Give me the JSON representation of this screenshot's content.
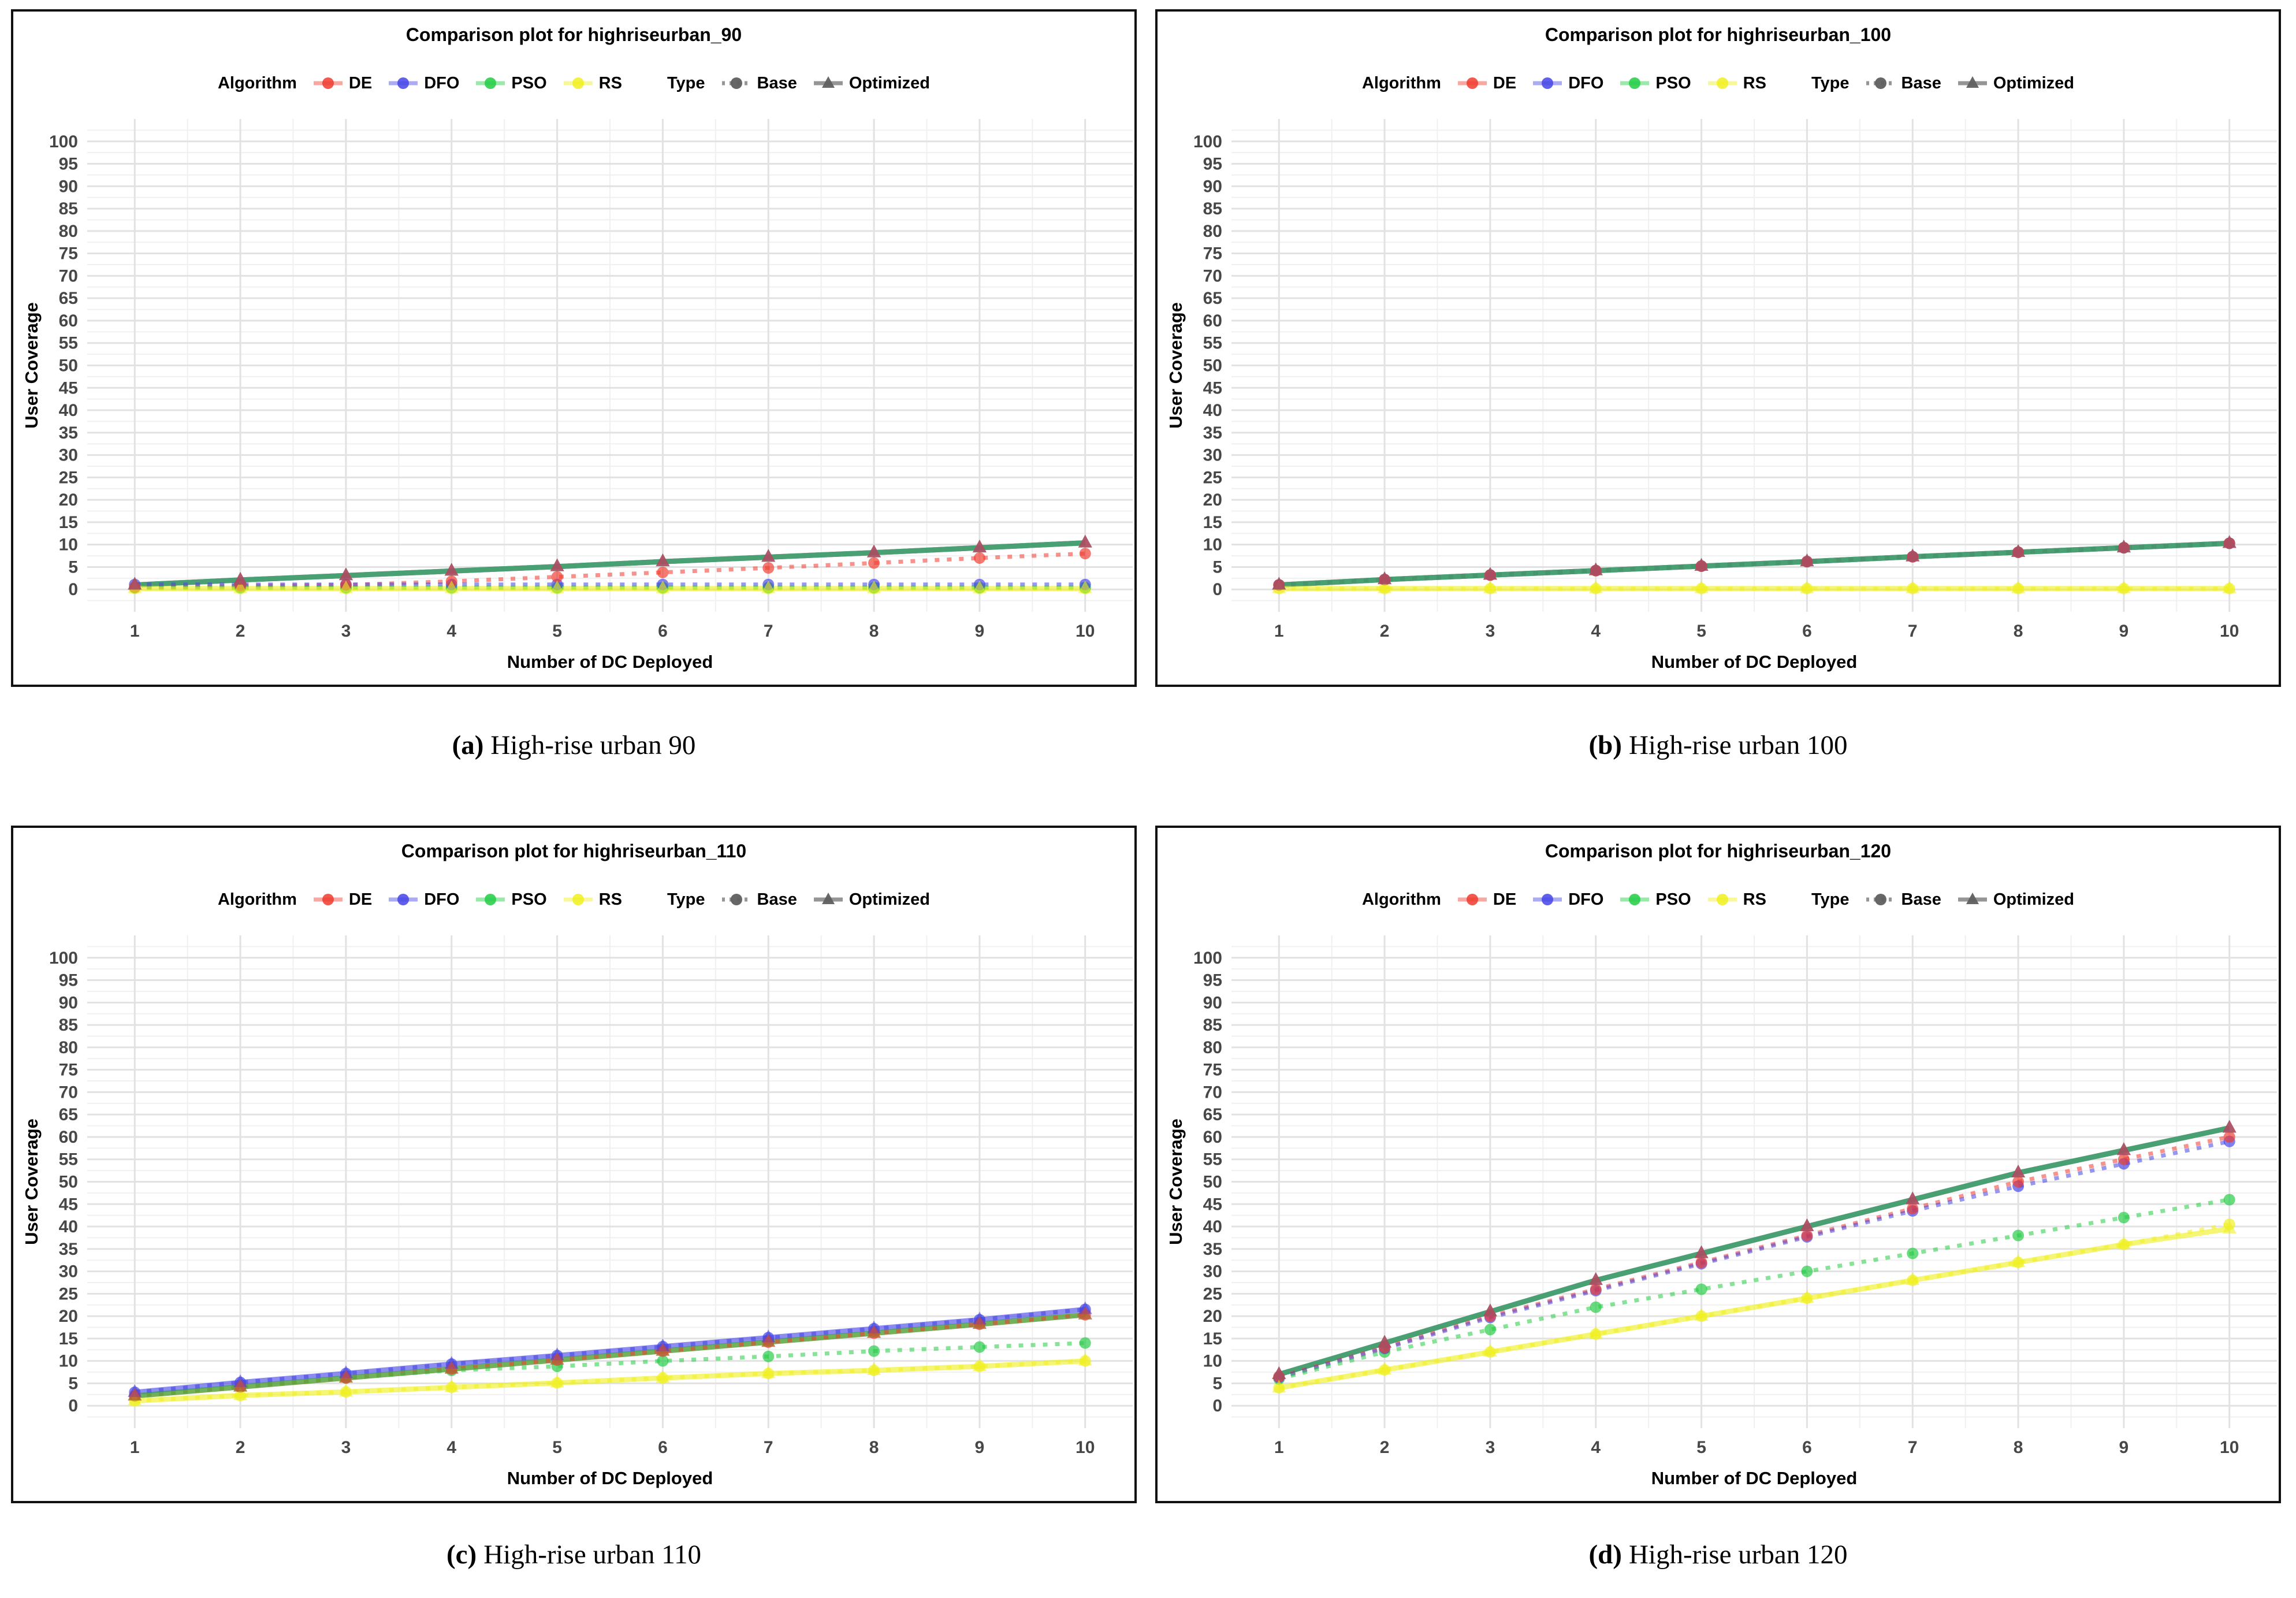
{
  "palette": {
    "DE": "#f03b2e",
    "DFO": "#4444e6",
    "PSO": "#22cc44",
    "RS": "#f0f020",
    "type_gray": "#8a8a8a",
    "type_dark_gray": "#5f5f5f",
    "grid_major": "#e2e2e2",
    "grid_minor": "#f0f0f0",
    "tick_label": "#474747",
    "axis_title": "#000000",
    "border": "#111111"
  },
  "legend": {
    "algorithm_label": "Algorithm",
    "algorithms": [
      {
        "label": "DE",
        "color_key": "DE"
      },
      {
        "label": "DFO",
        "color_key": "DFO"
      },
      {
        "label": "PSO",
        "color_key": "PSO"
      },
      {
        "label": "RS",
        "color_key": "RS"
      }
    ],
    "type_label": "Type",
    "types": [
      {
        "label": "Base",
        "line": "dotted",
        "marker": "circle"
      },
      {
        "label": "Optimized",
        "line": "solid",
        "marker": "triangle"
      }
    ]
  },
  "panels": [
    {
      "id": "a",
      "title": "Comparison plot for highriseurban_90",
      "caption": {
        "label": "(a)",
        "text": "High-rise urban 90"
      }
    },
    {
      "id": "b",
      "title": "Comparison plot for highriseurban_100",
      "caption": {
        "label": "(b)",
        "text": "High-rise urban 100"
      }
    },
    {
      "id": "c",
      "title": "Comparison plot for highriseurban_110",
      "caption": {
        "label": "(c)",
        "text": "High-rise urban 110"
      }
    },
    {
      "id": "d",
      "title": "Comparison plot for highriseurban_120",
      "caption": {
        "label": "(d)",
        "text": "High-rise urban 120"
      }
    }
  ],
  "chart_data": [
    {
      "panel": "a",
      "type": "line",
      "title": "Comparison plot for highriseurban_90",
      "xlabel": "Number of DC Deployed",
      "ylabel": "User Coverage",
      "x": [
        1,
        2,
        3,
        4,
        5,
        6,
        7,
        8,
        9,
        10
      ],
      "xlim": [
        0.55,
        10.45
      ],
      "ylim": [
        -5,
        105
      ],
      "x_tick_labels": [
        "1",
        "2",
        "3",
        "4",
        "5",
        "6",
        "7",
        "8",
        "9",
        "10"
      ],
      "y_tick_labels": [
        "0",
        "5",
        "10",
        "15",
        "20",
        "25",
        "30",
        "35",
        "40",
        "45",
        "50",
        "55",
        "60",
        "65",
        "70",
        "75",
        "80",
        "85",
        "90",
        "95",
        "100"
      ],
      "y_major_step": 5,
      "grid": true,
      "legend_position": "top",
      "series": [
        {
          "name": "DE Base",
          "algorithm": "DE",
          "type": "Base",
          "values": [
            0.5,
            0.8,
            1,
            1.8,
            2.8,
            3.8,
            4.8,
            5.9,
            7,
            8
          ]
        },
        {
          "name": "DE Optimized",
          "algorithm": "DE",
          "type": "Optimized",
          "values": [
            1,
            2.1,
            3.1,
            4.1,
            5.1,
            6.2,
            7.2,
            8.2,
            9.3,
            10.4
          ]
        },
        {
          "name": "DFO Base",
          "algorithm": "DFO",
          "type": "Base",
          "values": [
            1.1,
            1.1,
            1.1,
            1.1,
            1.1,
            1.1,
            1.1,
            1.1,
            1.1,
            1.1
          ]
        },
        {
          "name": "DFO Optimized",
          "algorithm": "DFO",
          "type": "Optimized",
          "values": [
            1,
            2.1,
            3.1,
            4.1,
            5.1,
            6.2,
            7.2,
            8.2,
            9.3,
            10.4
          ]
        },
        {
          "name": "PSO Base",
          "algorithm": "PSO",
          "type": "Base",
          "values": [
            0.4,
            0.4,
            0.4,
            0.4,
            0.4,
            0.4,
            0.4,
            0.4,
            0.4,
            0.4
          ]
        },
        {
          "name": "PSO Optimized",
          "algorithm": "PSO",
          "type": "Optimized",
          "values": [
            1,
            2.1,
            3.1,
            4.1,
            5.1,
            6.2,
            7.2,
            8.2,
            9.3,
            10.4
          ]
        },
        {
          "name": "RS Base",
          "algorithm": "RS",
          "type": "Base",
          "values": [
            0.2,
            0.2,
            0.2,
            0.2,
            0.2,
            0.2,
            0.2,
            0.2,
            0.2,
            0.2
          ]
        },
        {
          "name": "RS Optimized",
          "algorithm": "RS",
          "type": "Optimized",
          "values": [
            0.2,
            0.2,
            0.2,
            0.2,
            0.2,
            0.2,
            0.2,
            0.2,
            0.2,
            0.2
          ]
        }
      ]
    },
    {
      "panel": "b",
      "type": "line",
      "title": "Comparison plot for highriseurban_100",
      "xlabel": "Number of DC Deployed",
      "ylabel": "User Coverage",
      "x": [
        1,
        2,
        3,
        4,
        5,
        6,
        7,
        8,
        9,
        10
      ],
      "xlim": [
        0.55,
        10.45
      ],
      "ylim": [
        -5,
        105
      ],
      "x_tick_labels": [
        "1",
        "2",
        "3",
        "4",
        "5",
        "6",
        "7",
        "8",
        "9",
        "10"
      ],
      "y_tick_labels": [
        "0",
        "5",
        "10",
        "15",
        "20",
        "25",
        "30",
        "35",
        "40",
        "45",
        "50",
        "55",
        "60",
        "65",
        "70",
        "75",
        "80",
        "85",
        "90",
        "95",
        "100"
      ],
      "y_major_step": 5,
      "grid": true,
      "legend_position": "top",
      "series": [
        {
          "name": "DE Base",
          "algorithm": "DE",
          "type": "Base",
          "values": [
            1,
            2.2,
            3.2,
            4.2,
            5.2,
            6.2,
            7.3,
            8.3,
            9.3,
            10.3
          ]
        },
        {
          "name": "DE Optimized",
          "algorithm": "DE",
          "type": "Optimized",
          "values": [
            1,
            2.2,
            3.2,
            4.2,
            5.2,
            6.2,
            7.3,
            8.3,
            9.3,
            10.3
          ]
        },
        {
          "name": "DFO Base",
          "algorithm": "DFO",
          "type": "Base",
          "values": [
            1,
            2.2,
            3.2,
            4.2,
            5.2,
            6.2,
            7.3,
            8.3,
            9.3,
            10.3
          ]
        },
        {
          "name": "DFO Optimized",
          "algorithm": "DFO",
          "type": "Optimized",
          "values": [
            1,
            2.2,
            3.2,
            4.2,
            5.2,
            6.2,
            7.3,
            8.3,
            9.3,
            10.3
          ]
        },
        {
          "name": "PSO Base",
          "algorithm": "PSO",
          "type": "Base",
          "values": [
            1,
            2.2,
            3.2,
            4.2,
            5.2,
            6.2,
            7.3,
            8.3,
            9.3,
            10.3
          ]
        },
        {
          "name": "PSO Optimized",
          "algorithm": "PSO",
          "type": "Optimized",
          "values": [
            1,
            2.2,
            3.2,
            4.2,
            5.2,
            6.2,
            7.3,
            8.3,
            9.3,
            10.3
          ]
        },
        {
          "name": "RS Base",
          "algorithm": "RS",
          "type": "Base",
          "values": [
            0.2,
            0.2,
            0.2,
            0.2,
            0.2,
            0.2,
            0.2,
            0.2,
            0.2,
            0.2
          ]
        },
        {
          "name": "RS Optimized",
          "algorithm": "RS",
          "type": "Optimized",
          "values": [
            0.2,
            0.2,
            0.2,
            0.2,
            0.2,
            0.2,
            0.2,
            0.2,
            0.2,
            0.2
          ]
        }
      ]
    },
    {
      "panel": "c",
      "type": "line",
      "title": "Comparison plot for highriseurban_110",
      "xlabel": "Number of DC Deployed",
      "ylabel": "User Coverage",
      "x": [
        1,
        2,
        3,
        4,
        5,
        6,
        7,
        8,
        9,
        10
      ],
      "xlim": [
        0.55,
        10.45
      ],
      "ylim": [
        -5,
        105
      ],
      "x_tick_labels": [
        "1",
        "2",
        "3",
        "4",
        "5",
        "6",
        "7",
        "8",
        "9",
        "10"
      ],
      "y_tick_labels": [
        "0",
        "5",
        "10",
        "15",
        "20",
        "25",
        "30",
        "35",
        "40",
        "45",
        "50",
        "55",
        "60",
        "65",
        "70",
        "75",
        "80",
        "85",
        "90",
        "95",
        "100"
      ],
      "y_major_step": 5,
      "grid": true,
      "legend_position": "top",
      "series": [
        {
          "name": "DE Base",
          "algorithm": "DE",
          "type": "Base",
          "values": [
            2.2,
            4.2,
            6.2,
            8.2,
            10.2,
            12.2,
            14.2,
            16.2,
            18.2,
            20.3
          ]
        },
        {
          "name": "DE Optimized",
          "algorithm": "DE",
          "type": "Optimized",
          "values": [
            2.2,
            4.2,
            6.2,
            8.2,
            10.2,
            12.2,
            14.2,
            16.2,
            18.2,
            20.3
          ]
        },
        {
          "name": "DFO Base",
          "algorithm": "DFO",
          "type": "Base",
          "values": [
            3,
            5.2,
            7.2,
            9.3,
            11.2,
            13.2,
            15.2,
            17.2,
            19.2,
            21.5
          ]
        },
        {
          "name": "DFO Optimized",
          "algorithm": "DFO",
          "type": "Optimized",
          "values": [
            3,
            5.2,
            7.2,
            9.3,
            11.2,
            13.2,
            15.2,
            17.2,
            19.2,
            21.5
          ]
        },
        {
          "name": "PSO Base",
          "algorithm": "PSO",
          "type": "Base",
          "values": [
            2.2,
            4.2,
            6.2,
            7.9,
            8.8,
            10,
            11,
            12.2,
            13.1,
            14
          ]
        },
        {
          "name": "PSO Optimized",
          "algorithm": "PSO",
          "type": "Optimized",
          "values": [
            2.2,
            4.2,
            6.2,
            8.2,
            10.2,
            12.2,
            14.2,
            16.2,
            18.2,
            20.3
          ]
        },
        {
          "name": "RS Base",
          "algorithm": "RS",
          "type": "Base",
          "values": [
            1.1,
            2.3,
            3.1,
            4.1,
            5.1,
            6.2,
            7.2,
            7.9,
            8.8,
            10
          ]
        },
        {
          "name": "RS Optimized",
          "algorithm": "RS",
          "type": "Optimized",
          "values": [
            1.1,
            2.3,
            3.1,
            4.1,
            5.1,
            6.2,
            7.2,
            7.9,
            8.8,
            10
          ]
        }
      ]
    },
    {
      "panel": "d",
      "type": "line",
      "title": "Comparison plot for highriseurban_120",
      "xlabel": "Number of DC Deployed",
      "ylabel": "User Coverage",
      "x": [
        1,
        2,
        3,
        4,
        5,
        6,
        7,
        8,
        9,
        10
      ],
      "xlim": [
        0.55,
        10.45
      ],
      "ylim": [
        -5,
        105
      ],
      "x_tick_labels": [
        "1",
        "2",
        "3",
        "4",
        "5",
        "6",
        "7",
        "8",
        "9",
        "10"
      ],
      "y_tick_labels": [
        "0",
        "5",
        "10",
        "15",
        "20",
        "25",
        "30",
        "35",
        "40",
        "45",
        "50",
        "55",
        "60",
        "65",
        "70",
        "75",
        "80",
        "85",
        "90",
        "95",
        "100"
      ],
      "y_major_step": 5,
      "grid": true,
      "legend_position": "top",
      "series": [
        {
          "name": "DE Base",
          "algorithm": "DE",
          "type": "Base",
          "values": [
            6.5,
            13,
            20,
            26,
            32,
            38,
            44,
            50,
            55,
            60
          ]
        },
        {
          "name": "DE Optimized",
          "algorithm": "DE",
          "type": "Optimized",
          "values": [
            7,
            14,
            21,
            28,
            34,
            40,
            46,
            52,
            57,
            62
          ]
        },
        {
          "name": "DFO Base",
          "algorithm": "DFO",
          "type": "Base",
          "values": [
            6.3,
            12.8,
            19.7,
            25.7,
            31.7,
            37.7,
            43.5,
            49,
            54,
            59
          ]
        },
        {
          "name": "DFO Optimized",
          "algorithm": "DFO",
          "type": "Optimized",
          "values": [
            7,
            14,
            21,
            28,
            34,
            40,
            46,
            52,
            57,
            62
          ]
        },
        {
          "name": "PSO Base",
          "algorithm": "PSO",
          "type": "Base",
          "values": [
            6,
            12,
            17,
            22,
            26,
            30,
            34,
            38,
            42,
            46
          ]
        },
        {
          "name": "PSO Optimized",
          "algorithm": "PSO",
          "type": "Optimized",
          "values": [
            7,
            14,
            21,
            28,
            34,
            40,
            46,
            52,
            57,
            62
          ]
        },
        {
          "name": "RS Base",
          "algorithm": "RS",
          "type": "Base",
          "values": [
            4,
            8,
            12,
            16,
            20,
            24,
            28,
            32,
            36,
            40.5
          ]
        },
        {
          "name": "RS Optimized",
          "algorithm": "RS",
          "type": "Optimized",
          "values": [
            4,
            8,
            12,
            16,
            20,
            24,
            28,
            32,
            36,
            39.5
          ]
        }
      ]
    }
  ]
}
